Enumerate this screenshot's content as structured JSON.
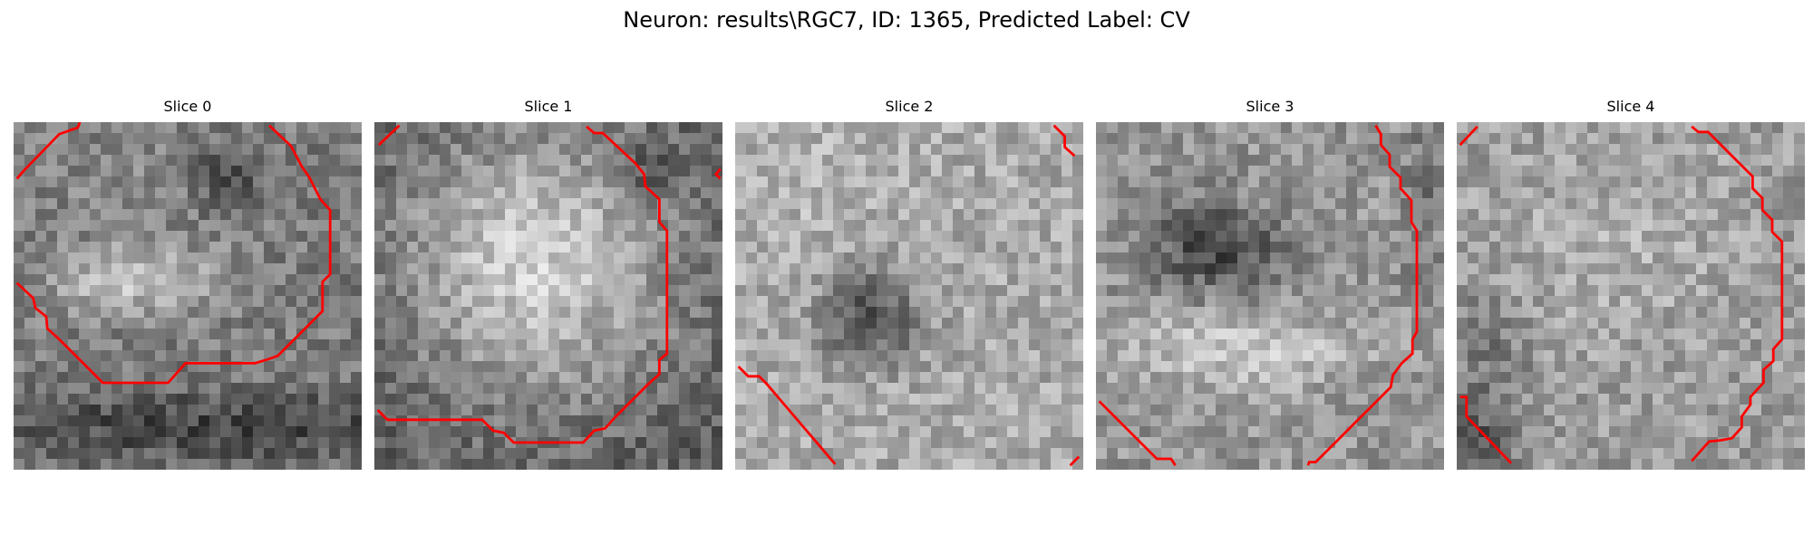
{
  "figure": {
    "title": "Neuron: results\\RGC7, ID: 1365, Predicted Label: CV"
  },
  "style": {
    "contour_color": "#ff0000",
    "image_colormap": "gray"
  },
  "slices": [
    {
      "title": "Slice 0"
    },
    {
      "title": "Slice 1"
    },
    {
      "title": "Slice 2"
    },
    {
      "title": "Slice 3"
    },
    {
      "title": "Slice 4"
    }
  ]
}
